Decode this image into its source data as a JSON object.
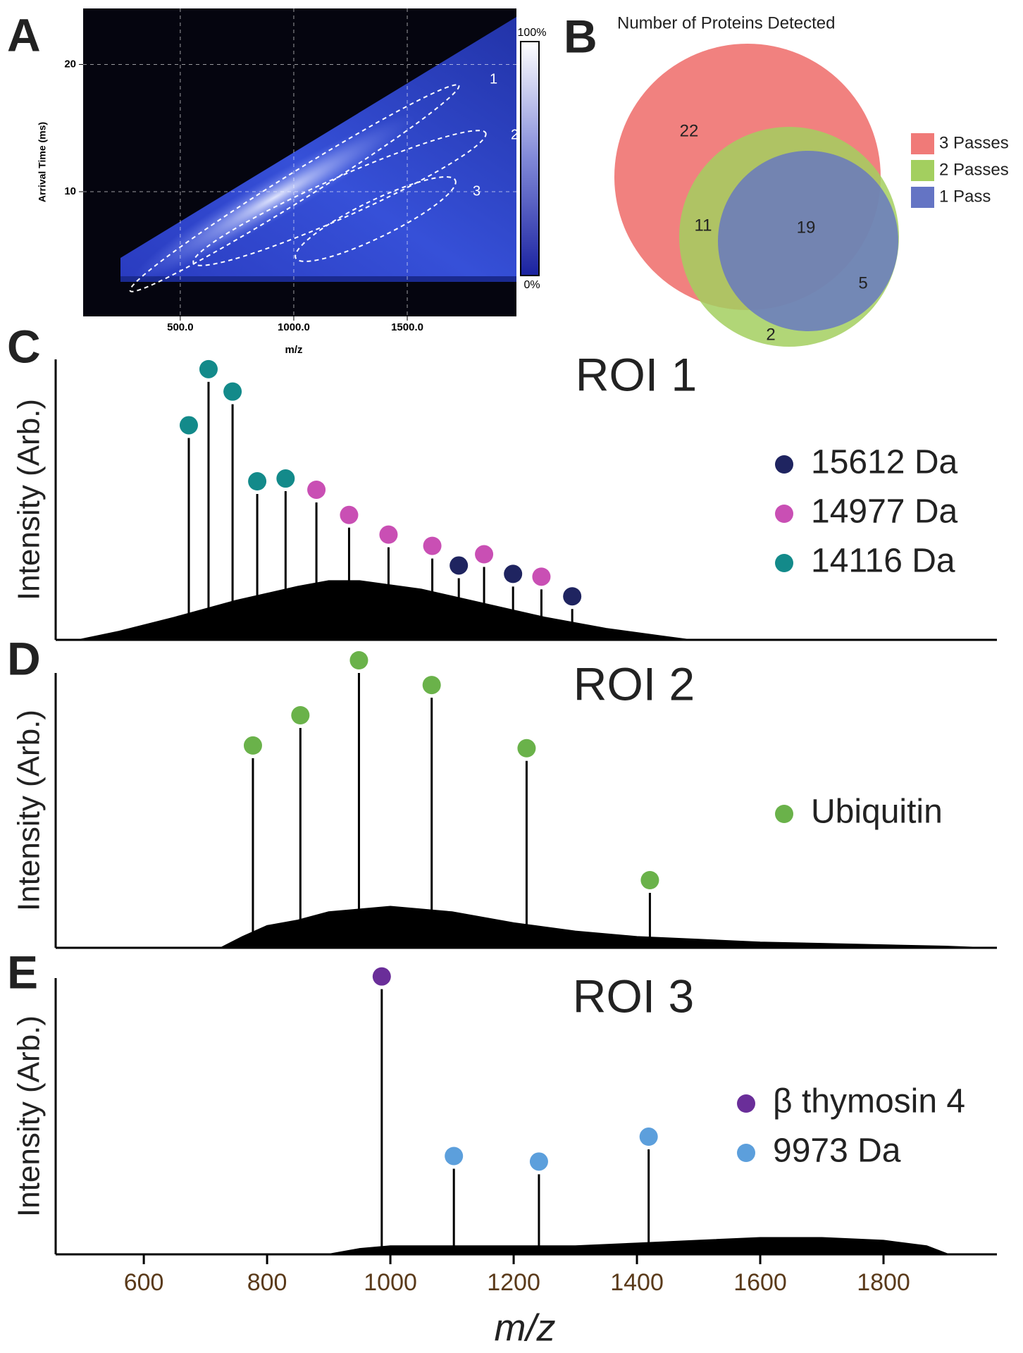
{
  "chart_data": [
    {
      "type": "heatmap",
      "label": "A",
      "xlabel": "m/z",
      "ylabel": "Arrival Time (ms)",
      "xlim": [
        72,
        1981
      ],
      "ylim": [
        0.2,
        24.4
      ],
      "xticks": [
        {
          "value": 500,
          "label": "500.0"
        },
        {
          "value": 1000,
          "label": "1000.0"
        },
        {
          "value": 1500,
          "label": "1500.0"
        }
      ],
      "yticks": [
        10,
        20
      ],
      "grid": true,
      "colorbar_labels": [
        "100%",
        "0%"
      ],
      "region_labels": [
        "1",
        "2",
        "3"
      ]
    },
    {
      "type": "venn",
      "label": "B",
      "title": "Number of Proteins Detected",
      "series": [
        {
          "name": "3 Passes",
          "color": "#f07a78"
        },
        {
          "name": "2 Passes",
          "color": "#a3cf5f"
        },
        {
          "name": "1 Pass",
          "color": "#6474c4"
        }
      ],
      "counts": [
        22,
        11,
        19,
        5,
        2
      ]
    },
    {
      "type": "spectrum",
      "label": "C",
      "title": "ROI 1",
      "ylabel": "Intensity (Arb.)",
      "xlim": [
        457,
        1984
      ],
      "ylim": [
        0,
        100
      ],
      "envelope": {
        "x": [
          495,
          560,
          650,
          750,
          850,
          900,
          950,
          1050,
          1150,
          1250,
          1350,
          1450,
          1485
        ],
        "values": [
          0,
          3,
          8,
          14,
          19,
          21,
          21,
          18,
          13,
          8,
          4,
          1,
          0
        ]
      },
      "series": [
        {
          "name": "15612 Da",
          "color": "#1f2460",
          "x": [
            1111,
            1199,
            1295
          ],
          "values": [
            22,
            19,
            11
          ]
        },
        {
          "name": "14977 Da",
          "color": "#c94fb4",
          "x": [
            880,
            933,
            997,
            1068,
            1152,
            1245
          ],
          "values": [
            49,
            40,
            33,
            29,
            26,
            18
          ]
        },
        {
          "name": "14116 Da",
          "color": "#138a8a",
          "x": [
            673,
            705,
            744,
            784,
            830
          ],
          "values": [
            72,
            92,
            84,
            52,
            53
          ]
        }
      ]
    },
    {
      "type": "spectrum",
      "label": "D",
      "title": "ROI 2",
      "ylabel": "Intensity (Arb.)",
      "xlim": [
        457,
        1984
      ],
      "ylim": [
        0,
        100
      ],
      "envelope": {
        "x": [
          725,
          760,
          800,
          850,
          900,
          950,
          1000,
          1050,
          1100,
          1200,
          1300,
          1400,
          1500,
          1600,
          1700,
          1800,
          1900,
          1960
        ],
        "values": [
          0,
          4,
          8,
          10,
          13,
          14,
          15,
          14,
          13,
          9,
          6,
          4,
          3,
          2,
          1.5,
          1,
          0.5,
          0
        ]
      },
      "series": [
        {
          "name": "Ubiquitin",
          "color": "#6ab24a",
          "x": [
            777,
            854,
            949,
            1067,
            1221,
            1421
          ],
          "values": [
            69,
            80,
            100,
            91,
            68,
            20
          ]
        }
      ]
    },
    {
      "type": "spectrum",
      "label": "E",
      "title": "ROI 3",
      "ylabel": "Intensity (Arb.)",
      "xlabel": "m/z",
      "xlim": [
        457,
        1984
      ],
      "ylim": [
        0,
        100
      ],
      "xticks": [
        600,
        800,
        1000,
        1200,
        1400,
        1600,
        1800
      ],
      "envelope": {
        "x": [
          900,
          950,
          1000,
          1100,
          1200,
          1300,
          1400,
          1500,
          1600,
          1700,
          1800,
          1870,
          1905
        ],
        "values": [
          0,
          2,
          3,
          3,
          3,
          3,
          4,
          5,
          6,
          6,
          5,
          3,
          0
        ]
      },
      "series": [
        {
          "name": "β thymosin 4",
          "color": "#6a2e99",
          "x": [
            986
          ],
          "values": [
            96
          ]
        },
        {
          "name": "9973 Da",
          "color": "#5c9fdc",
          "x": [
            1103,
            1241,
            1419
          ],
          "values": [
            31,
            29,
            38
          ]
        }
      ]
    }
  ]
}
